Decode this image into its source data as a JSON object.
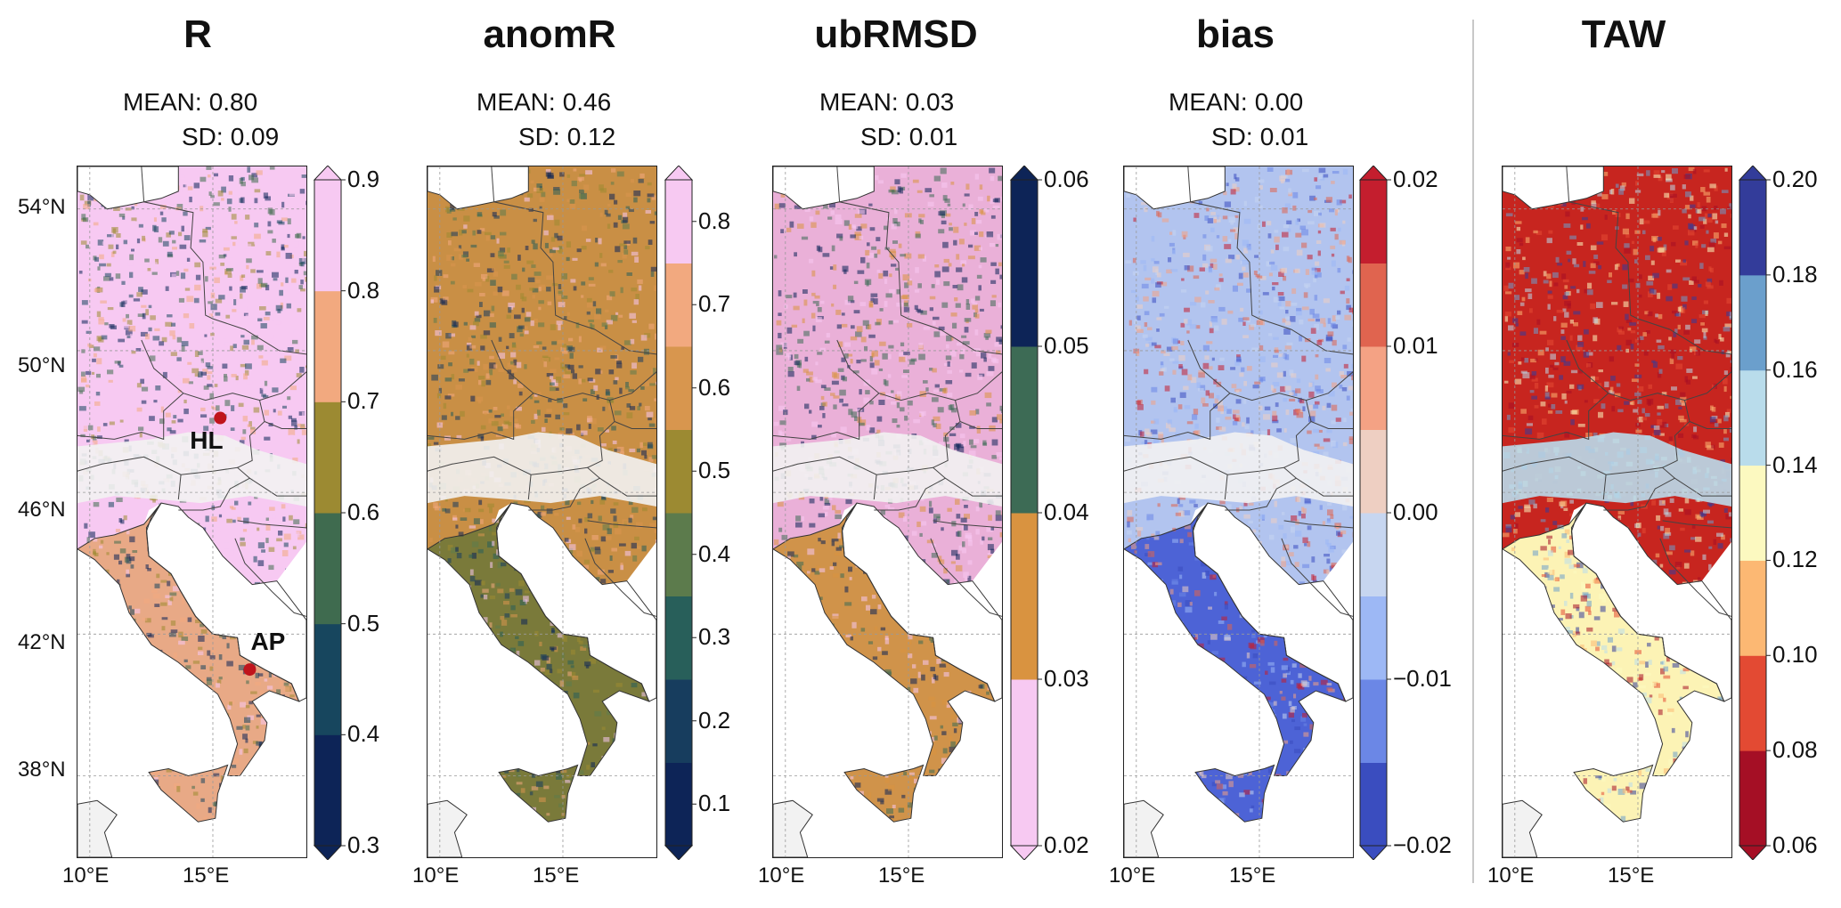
{
  "panels": [
    {
      "title": "R",
      "stats": {
        "mean_label": "MEAN:",
        "mean": "0.80",
        "sd_label": "SD:",
        "sd": "0.09"
      },
      "colormap": [
        "#0d2457",
        "#17465e",
        "#3f6b4f",
        "#9c8a32",
        "#f2a97f",
        "#f7c9f2"
      ],
      "colorbar_ticks": [
        "0.3",
        "0.4",
        "0.5",
        "0.6",
        "0.7",
        "0.8",
        "0.9"
      ],
      "extend": "both",
      "dominant_colors": {
        "north": "#f7c9f2",
        "alps": "#f2f2f2",
        "south": "#e8a986"
      },
      "markers": [
        {
          "label": "HL",
          "lon": 15.3,
          "lat": 48.1
        },
        {
          "label": "AP",
          "lon": 16.5,
          "lat": 41.0
        }
      ]
    },
    {
      "title": "anomR",
      "stats": {
        "mean_label": "MEAN:",
        "mean": "0.46",
        "sd_label": "SD:",
        "sd": "0.12"
      },
      "colormap": [
        "#0d2457",
        "#173d5e",
        "#285f5a",
        "#5c7b4c",
        "#9c8a32",
        "#d8964e",
        "#f2a97f",
        "#f7c9f2"
      ],
      "colorbar_ticks": [
        "0.1",
        "0.2",
        "0.3",
        "0.4",
        "0.5",
        "0.6",
        "0.7",
        "0.8"
      ],
      "extend": "both",
      "dominant_colors": {
        "north": "#c98f45",
        "alps": "#f2f2f2",
        "south": "#7a7a3a"
      }
    },
    {
      "title": "ubRMSD",
      "stats": {
        "mean_label": "MEAN:",
        "mean": "0.03",
        "sd_label": "SD:",
        "sd": "0.01"
      },
      "colormap": [
        "#f7c9f2",
        "#d99340",
        "#3d6b55",
        "#0d2457"
      ],
      "colorbar_ticks": [
        "0.02",
        "0.03",
        "0.04",
        "0.05",
        "0.06"
      ],
      "extend": "both",
      "dominant_colors": {
        "north": "#eab0d8",
        "alps": "#f2f2f2",
        "south": "#d0934a"
      }
    },
    {
      "title": "bias",
      "stats": {
        "mean_label": "MEAN:",
        "mean": "0.00",
        "sd_label": "SD:",
        "sd": "0.01"
      },
      "colormap": [
        "#3a4dbf",
        "#6b87e6",
        "#9db8f5",
        "#c7d6f0",
        "#eecfc2",
        "#f4a284",
        "#e0644f",
        "#c41e2e"
      ],
      "colorbar_ticks": [
        "−0.02",
        "−0.01",
        "0.00",
        "0.01",
        "0.02"
      ],
      "extend": "both",
      "dominant_colors": {
        "north": "#b2c4ef",
        "alps": "#f2f2f2",
        "south": "#4d63d6"
      }
    },
    {
      "title": "TAW",
      "colormap": [
        "#a50f25",
        "#e34a33",
        "#fcb873",
        "#fcf9c0",
        "#b9dceb",
        "#6b9fcc",
        "#333c9a"
      ],
      "colorbar_ticks": [
        "0.06",
        "0.08",
        "0.10",
        "0.12",
        "0.14",
        "0.16",
        "0.18",
        "0.20"
      ],
      "extend": "both",
      "dominant_colors": {
        "north": "#c7251f",
        "alps": "#b9dceb",
        "south": "#fcf3b5"
      }
    }
  ],
  "axes": {
    "lat_ticks": [
      "54°N",
      "50°N",
      "46°N",
      "42°N",
      "38°N"
    ],
    "lon_ticks": [
      "10°E",
      "15°E"
    ]
  }
}
